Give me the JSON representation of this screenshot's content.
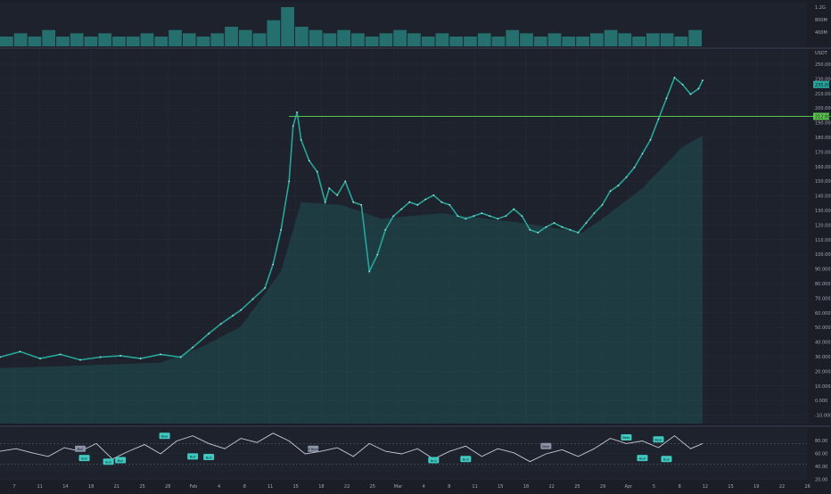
{
  "colors": {
    "background": "#1b1e27",
    "pane_background": "#1e222d",
    "grid": "#262a36",
    "separator": "#2c3040",
    "axis_text": "#a2a6b1",
    "candle": "#26a69a",
    "wick": "#b2dfdb",
    "band_fill": "#1f6a6a",
    "level_line": "#5cc24f",
    "price_tag": "#26a69a",
    "volume": "#2a8a86",
    "rsi_line": "#c8cbd2",
    "rsi_marker": "#3fc9c1",
    "rsi_marker_alt": "#8a92a6"
  },
  "volume_axis": {
    "labels": [
      "1.2G",
      "800M",
      "400M"
    ]
  },
  "price_axis": {
    "top_label": "USDT",
    "labels": [
      "250.000",
      "230.000",
      "210.000",
      "200.000",
      "190.000",
      "180.000",
      "170.000",
      "160.000",
      "150.000",
      "140.000",
      "130.000",
      "120.000",
      "110.000",
      "100.000",
      "90.000",
      "80.000",
      "70.000",
      "60.000",
      "50.000",
      "40.000",
      "30.000",
      "20.000",
      "10.000",
      "0.000",
      "-10.000"
    ],
    "last_price_tag": "235.000",
    "level_tag": "212.000"
  },
  "rsi_axis": {
    "labels": [
      "80.00",
      "60.00",
      "40.00",
      "20.00"
    ]
  },
  "time_axis": {
    "labels": [
      "7",
      "11",
      "14",
      "18",
      "21",
      "25",
      "28",
      "Feb",
      "4",
      "8",
      "11",
      "15",
      "18",
      "22",
      "25",
      "Mar",
      "4",
      "8",
      "11",
      "15",
      "18",
      "22",
      "25",
      "29",
      "Apr",
      "5",
      "8",
      "12",
      "15",
      "19",
      "22",
      "26"
    ]
  },
  "chart_data": {
    "type": "line",
    "panes": [
      "volume",
      "price",
      "rsi"
    ],
    "price": {
      "ylim": [
        -10,
        260
      ],
      "level": 212,
      "last_price": 235,
      "points": [
        [
          0,
          38
        ],
        [
          5,
          42
        ],
        [
          10,
          37
        ],
        [
          15,
          40
        ],
        [
          20,
          36
        ],
        [
          25,
          38
        ],
        [
          30,
          39
        ],
        [
          35,
          37
        ],
        [
          40,
          40
        ],
        [
          45,
          38
        ],
        [
          48,
          45
        ],
        [
          52,
          55
        ],
        [
          55,
          62
        ],
        [
          58,
          68
        ],
        [
          60,
          72
        ],
        [
          63,
          80
        ],
        [
          66,
          88
        ],
        [
          68,
          105
        ],
        [
          70,
          130
        ],
        [
          72,
          165
        ],
        [
          73,
          205
        ],
        [
          74,
          215
        ],
        [
          75,
          195
        ],
        [
          77,
          180
        ],
        [
          79,
          172
        ],
        [
          81,
          150
        ],
        [
          82,
          160
        ],
        [
          84,
          155
        ],
        [
          86,
          165
        ],
        [
          88,
          150
        ],
        [
          90,
          148
        ],
        [
          92,
          100
        ],
        [
          94,
          112
        ],
        [
          96,
          130
        ],
        [
          98,
          140
        ],
        [
          100,
          145
        ],
        [
          102,
          150
        ],
        [
          104,
          148
        ],
        [
          106,
          152
        ],
        [
          108,
          155
        ],
        [
          110,
          150
        ],
        [
          112,
          148
        ],
        [
          114,
          140
        ],
        [
          116,
          138
        ],
        [
          118,
          140
        ],
        [
          120,
          142
        ],
        [
          122,
          140
        ],
        [
          124,
          138
        ],
        [
          126,
          140
        ],
        [
          128,
          145
        ],
        [
          130,
          140
        ],
        [
          132,
          130
        ],
        [
          134,
          128
        ],
        [
          136,
          132
        ],
        [
          138,
          135
        ],
        [
          140,
          132
        ],
        [
          142,
          130
        ],
        [
          144,
          128
        ],
        [
          146,
          135
        ],
        [
          148,
          142
        ],
        [
          150,
          148
        ],
        [
          152,
          158
        ],
        [
          154,
          162
        ],
        [
          156,
          168
        ],
        [
          158,
          175
        ],
        [
          160,
          185
        ],
        [
          162,
          195
        ],
        [
          164,
          210
        ],
        [
          166,
          225
        ],
        [
          168,
          240
        ],
        [
          170,
          235
        ],
        [
          172,
          228
        ],
        [
          174,
          232
        ],
        [
          175,
          238
        ]
      ],
      "band_points": [
        [
          0,
          30
        ],
        [
          20,
          32
        ],
        [
          40,
          34
        ],
        [
          50,
          45
        ],
        [
          60,
          60
        ],
        [
          70,
          100
        ],
        [
          75,
          150
        ],
        [
          85,
          148
        ],
        [
          95,
          138
        ],
        [
          110,
          142
        ],
        [
          130,
          135
        ],
        [
          145,
          128
        ],
        [
          150,
          138
        ],
        [
          160,
          160
        ],
        [
          170,
          190
        ],
        [
          175,
          198
        ]
      ]
    },
    "rsi": {
      "ylim": [
        0,
        100
      ],
      "points": [
        [
          0,
          55
        ],
        [
          4,
          60
        ],
        [
          8,
          52
        ],
        [
          12,
          45
        ],
        [
          16,
          62
        ],
        [
          20,
          55
        ],
        [
          24,
          70
        ],
        [
          28,
          40
        ],
        [
          32,
          55
        ],
        [
          36,
          68
        ],
        [
          40,
          50
        ],
        [
          44,
          75
        ],
        [
          48,
          85
        ],
        [
          52,
          70
        ],
        [
          56,
          60
        ],
        [
          60,
          80
        ],
        [
          64,
          72
        ],
        [
          68,
          90
        ],
        [
          72,
          75
        ],
        [
          76,
          50
        ],
        [
          80,
          55
        ],
        [
          84,
          62
        ],
        [
          88,
          45
        ],
        [
          92,
          70
        ],
        [
          96,
          55
        ],
        [
          100,
          50
        ],
        [
          104,
          60
        ],
        [
          108,
          40
        ],
        [
          112,
          55
        ],
        [
          116,
          65
        ],
        [
          120,
          45
        ],
        [
          124,
          60
        ],
        [
          128,
          52
        ],
        [
          132,
          35
        ],
        [
          136,
          50
        ],
        [
          140,
          58
        ],
        [
          144,
          45
        ],
        [
          148,
          60
        ],
        [
          152,
          80
        ],
        [
          156,
          70
        ],
        [
          160,
          75
        ],
        [
          164,
          62
        ],
        [
          168,
          85
        ],
        [
          172,
          60
        ],
        [
          175,
          70
        ]
      ],
      "markers": [
        {
          "x": 20,
          "value": 60,
          "label": "Bull",
          "style": "alt"
        },
        {
          "x": 21,
          "value": 42,
          "label": "Bull",
          "style": "main"
        },
        {
          "x": 27,
          "value": 35,
          "label": "Bull",
          "style": "main"
        },
        {
          "x": 30,
          "value": 38,
          "label": "Bull",
          "style": "main"
        },
        {
          "x": 41,
          "value": 85,
          "label": "Bear",
          "style": "main"
        },
        {
          "x": 48,
          "value": 45,
          "label": "Bull",
          "style": "main"
        },
        {
          "x": 52,
          "value": 44,
          "label": "Bull",
          "style": "main"
        },
        {
          "x": 78,
          "value": 60,
          "label": "H Bear",
          "style": "alt"
        },
        {
          "x": 108,
          "value": 38,
          "label": "Bull",
          "style": "main"
        },
        {
          "x": 116,
          "value": 40,
          "label": "Bull",
          "style": "main"
        },
        {
          "x": 136,
          "value": 65,
          "label": "Bear",
          "style": "alt"
        },
        {
          "x": 156,
          "value": 82,
          "label": "Bear",
          "style": "main"
        },
        {
          "x": 160,
          "value": 42,
          "label": "Bull",
          "style": "main"
        },
        {
          "x": 164,
          "value": 78,
          "label": "Bear",
          "style": "main"
        },
        {
          "x": 166,
          "value": 40,
          "label": "Bull",
          "style": "main"
        }
      ]
    },
    "volume": {
      "values": [
        3,
        4,
        3,
        5,
        3,
        4,
        3,
        4,
        3,
        3,
        4,
        3,
        5,
        4,
        3,
        4,
        6,
        5,
        4,
        8,
        12,
        6,
        5,
        4,
        5,
        4,
        3,
        4,
        5,
        4,
        3,
        4,
        3,
        3,
        4,
        3,
        5,
        4,
        3,
        4,
        3,
        3,
        4,
        5,
        4,
        3,
        4,
        4,
        3,
        5
      ]
    }
  }
}
